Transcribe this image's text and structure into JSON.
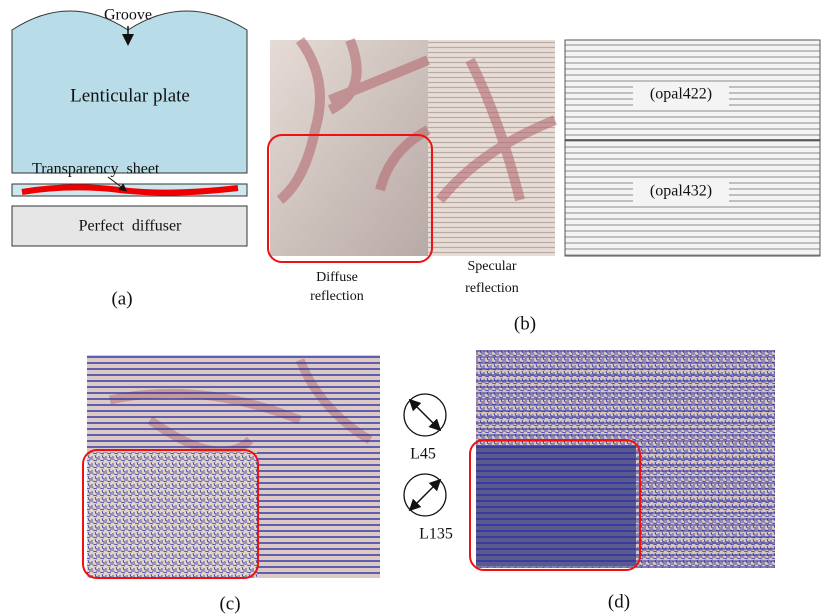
{
  "panel_a": {
    "groove": "Groove",
    "plate": "Lenticular plate",
    "sheet": "Transparency  sheet",
    "diffuser": "Perfect  diffuser",
    "caption": "(a)"
  },
  "panel_b": {
    "diffuse_label": [
      "Diffuse",
      "reflection"
    ],
    "specular_label": [
      "Specular",
      "reflection"
    ],
    "opal_top": "(opal422)",
    "opal_bottom": "(opal432)",
    "caption": "(b)"
  },
  "polarizers": [
    "L45",
    "L135"
  ],
  "panel_c": {
    "caption": "(c)"
  },
  "panel_d": {
    "caption": "(d)"
  }
}
